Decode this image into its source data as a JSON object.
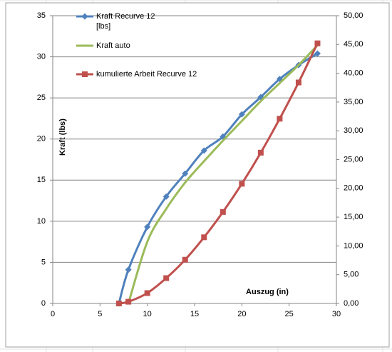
{
  "chart_data": {
    "type": "line",
    "x": [
      7,
      8,
      10,
      12,
      14,
      16,
      18,
      20,
      22,
      24,
      26,
      28
    ],
    "xlim": [
      0,
      30
    ],
    "xticks": [
      0,
      5,
      10,
      15,
      20,
      25,
      30
    ],
    "ylim": [
      0,
      35
    ],
    "yticks": [
      0,
      5,
      10,
      15,
      20,
      25,
      30,
      35
    ],
    "y2lim": [
      0,
      50
    ],
    "y2ticks": [
      {
        "value": 0,
        "label": "0,00"
      },
      {
        "value": 5,
        "label": "5,00"
      },
      {
        "value": 10,
        "label": "10,00"
      },
      {
        "value": 15,
        "label": "15,00"
      },
      {
        "value": 20,
        "label": "20,00"
      },
      {
        "value": 25,
        "label": "25,00"
      },
      {
        "value": 30,
        "label": "30,00"
      },
      {
        "value": 35,
        "label": "35,00"
      },
      {
        "value": 40,
        "label": "40,00"
      },
      {
        "value": 45,
        "label": "45,00"
      },
      {
        "value": 50,
        "label": "50,00"
      }
    ],
    "ylabel": "Kraft (lbs)",
    "annotation": "Auszug (in)",
    "grid": true,
    "series": [
      {
        "name": "Kraft Recurve 12 [lbs]",
        "color": "#4f81bd",
        "marker": "diamond",
        "values": [
          0,
          4.1,
          9.3,
          13,
          15.8,
          18.6,
          20.3,
          23,
          25.1,
          27.3,
          29,
          30.4
        ]
      },
      {
        "name": "Kraft auto",
        "color": "#9bbb59",
        "marker": "none",
        "values": [
          null,
          0,
          7.5,
          11.5,
          14.7,
          17.3,
          19.8,
          22.2,
          24.6,
          26.8,
          29,
          31.4
        ]
      },
      {
        "name": "kumulierte Arbeit Recurve 12",
        "color": "#c0504d",
        "marker": "square",
        "axis": "y2",
        "values": [
          0,
          0.3,
          1.8,
          4.4,
          7.6,
          11.5,
          15.9,
          20.8,
          26.2,
          32.1,
          38.4,
          45.2
        ]
      }
    ]
  }
}
